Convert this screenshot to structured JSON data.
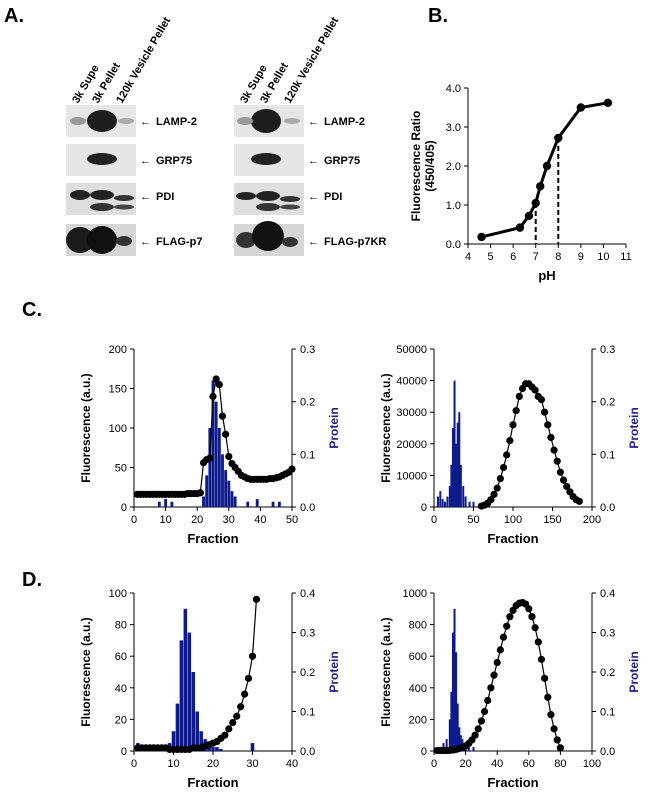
{
  "panels": {
    "A": {
      "letter": "A.",
      "lane_labels": [
        "3k Supe",
        "3k Pellet",
        "120k Vesicle Pellet"
      ],
      "left_blots": [
        "LAMP-2",
        "GRP75",
        "PDI",
        "FLAG-p7"
      ],
      "right_blots": [
        "LAMP-2",
        "GRP75",
        "PDI",
        "FLAG-p7KR"
      ],
      "arrow_glyph": "←"
    },
    "B": {
      "letter": "B."
    },
    "C": {
      "letter": "C."
    },
    "D": {
      "letter": "D."
    }
  },
  "chart_data": [
    {
      "id": "B",
      "type": "line",
      "xlabel": "pH",
      "ylabel": "Fluorescence Ratio",
      "ylabel2": "(450/405)",
      "xlim": [
        4,
        11
      ],
      "ylim": [
        0,
        4
      ],
      "xticks": [
        4,
        5,
        6,
        7,
        8,
        9,
        10,
        11
      ],
      "yticks": [
        0,
        1,
        2,
        3,
        4
      ],
      "ytick_labels": [
        "0.0",
        "1.0",
        "2.0",
        "3.0",
        "4.0"
      ],
      "grid": false,
      "x": [
        4.6,
        6.3,
        6.7,
        7.0,
        7.2,
        7.5,
        8.0,
        9.0,
        10.2
      ],
      "y": [
        0.18,
        0.42,
        0.72,
        1.05,
        1.48,
        2.0,
        2.72,
        3.5,
        3.62
      ],
      "dashed_markers": [
        7,
        8
      ]
    },
    {
      "id": "C-left",
      "type": "line",
      "xlabel": "Fraction",
      "ylabel": "Fluorescence (a.u.)",
      "ylabel_right": "Protein",
      "xlim": [
        0,
        50
      ],
      "ylim": [
        0,
        200
      ],
      "y2lim": [
        0,
        0.3
      ],
      "xticks": [
        0,
        10,
        20,
        30,
        40,
        50
      ],
      "yticks": [
        0,
        50,
        100,
        150,
        200
      ],
      "y2ticks": [
        0,
        0.1,
        0.2,
        0.3
      ],
      "y2tick_labels": [
        "0.0",
        "0.1",
        "0.2",
        "0.3"
      ],
      "fluorescence": {
        "x": [
          1,
          2,
          3,
          4,
          5,
          6,
          7,
          8,
          9,
          10,
          11,
          12,
          13,
          14,
          15,
          16,
          17,
          18,
          19,
          20,
          21,
          22,
          23,
          24,
          25,
          26,
          27,
          28,
          29,
          30,
          31,
          32,
          33,
          34,
          35,
          36,
          37,
          38,
          39,
          40,
          41,
          42,
          43,
          44,
          45,
          46,
          47,
          48,
          49,
          50
        ],
        "y": [
          16,
          16,
          16,
          16,
          16,
          16,
          16,
          16,
          16,
          16,
          16,
          16,
          16,
          16,
          16,
          16,
          17,
          17,
          17,
          17,
          18,
          56,
          60,
          62,
          140,
          162,
          155,
          115,
          92,
          64,
          55,
          50,
          45,
          40,
          38,
          36,
          35,
          35,
          35,
          35,
          35,
          35,
          36,
          36,
          37,
          38,
          40,
          42,
          44,
          48
        ]
      },
      "protein": {
        "x": [
          8,
          10,
          12,
          22,
          23,
          24,
          25,
          26,
          27,
          28,
          29,
          30,
          31,
          32,
          36,
          39,
          44,
          46
        ],
        "y": [
          0.01,
          0.015,
          0.01,
          0.02,
          0.06,
          0.15,
          0.24,
          0.2,
          0.15,
          0.1,
          0.07,
          0.05,
          0.03,
          0.02,
          0.01,
          0.015,
          0.01,
          0.01
        ]
      }
    },
    {
      "id": "C-right",
      "type": "line",
      "xlabel": "Fraction",
      "ylabel": "Fluorescence (a.u.)",
      "ylabel_right": "Protein",
      "xlim": [
        0,
        200
      ],
      "ylim": [
        0,
        50000
      ],
      "y2lim": [
        0,
        0.3
      ],
      "xticks": [
        0,
        50,
        100,
        150,
        200
      ],
      "yticks": [
        0,
        10000,
        20000,
        30000,
        40000,
        50000
      ],
      "y2ticks": [
        0,
        0.1,
        0.2,
        0.3
      ],
      "y2tick_labels": [
        "0.0",
        "0.1",
        "0.2",
        "0.3"
      ],
      "fluorescence": {
        "x": [
          60,
          64,
          68,
          72,
          76,
          80,
          84,
          88,
          92,
          96,
          100,
          104,
          108,
          112,
          116,
          120,
          124,
          128,
          132,
          136,
          140,
          144,
          148,
          152,
          156,
          160,
          164,
          168,
          172,
          176,
          180,
          184
        ],
        "y": [
          300,
          600,
          1200,
          2300,
          4000,
          6000,
          9000,
          12500,
          16500,
          21000,
          26000,
          30500,
          35000,
          37500,
          39000,
          39000,
          38000,
          37000,
          35000,
          34000,
          30000,
          26000,
          22000,
          18000,
          14500,
          11000,
          8500,
          6500,
          4800,
          3300,
          2300,
          1800
        ]
      },
      "protein": {
        "x": [
          5,
          8,
          11,
          14,
          17,
          20,
          22,
          24,
          26,
          28,
          30,
          32,
          34,
          37,
          40,
          45,
          50
        ],
        "y": [
          0.02,
          0.03,
          0.015,
          0.01,
          0.02,
          0.04,
          0.08,
          0.15,
          0.24,
          0.12,
          0.16,
          0.18,
          0.08,
          0.04,
          0.02,
          0.01,
          0.01
        ]
      }
    },
    {
      "id": "D-left",
      "type": "line",
      "xlabel": "Fraction",
      "ylabel": "Fluorescence (a.u.)",
      "ylabel_right": "Protein",
      "xlim": [
        0,
        40
      ],
      "ylim": [
        0,
        100
      ],
      "y2lim": [
        0,
        0.4
      ],
      "xticks": [
        0,
        10,
        20,
        30,
        40
      ],
      "yticks": [
        0,
        20,
        40,
        60,
        80,
        100
      ],
      "y2ticks": [
        0,
        0.1,
        0.2,
        0.3,
        0.4
      ],
      "y2tick_labels": [
        "0.0",
        "0.1",
        "0.2",
        "0.3",
        "0.4"
      ],
      "fluorescence": {
        "x": [
          1,
          2,
          3,
          4,
          5,
          6,
          7,
          8,
          9,
          10,
          11,
          12,
          13,
          14,
          15,
          16,
          17,
          18,
          19,
          20,
          21,
          22,
          23,
          24,
          25,
          26,
          27,
          28,
          29,
          30,
          31
        ],
        "y": [
          2,
          2,
          2,
          2,
          2,
          2,
          2,
          2,
          1,
          1,
          1,
          1,
          1,
          1,
          2,
          2,
          2,
          3,
          4,
          5,
          6,
          8,
          10,
          14,
          18,
          22,
          28,
          36,
          46,
          60,
          96
        ]
      },
      "protein": {
        "x": [
          1,
          2,
          3,
          4,
          5,
          6,
          7,
          8,
          9,
          10,
          11,
          12,
          13,
          14,
          15,
          16,
          17,
          18,
          19,
          20,
          21,
          22,
          30
        ],
        "y": [
          0.02,
          0.01,
          0.01,
          0.015,
          0.01,
          0.01,
          0.015,
          0.01,
          0.02,
          0.05,
          0.12,
          0.28,
          0.36,
          0.3,
          0.2,
          0.1,
          0.05,
          0.03,
          0.02,
          0.01,
          0.01,
          0.005,
          0.02
        ]
      }
    },
    {
      "id": "D-right",
      "type": "line",
      "xlabel": "Fraction",
      "ylabel": "Fluorescence (a.u.)",
      "ylabel_right": "Protein",
      "xlim": [
        0,
        100
      ],
      "ylim": [
        0,
        1000
      ],
      "y2lim": [
        0,
        0.4
      ],
      "xticks": [
        0,
        20,
        40,
        60,
        80,
        100
      ],
      "yticks": [
        0,
        200,
        400,
        600,
        800,
        1000
      ],
      "y2ticks": [
        0,
        0.1,
        0.2,
        0.3,
        0.4
      ],
      "y2tick_labels": [
        "0.0",
        "0.1",
        "0.2",
        "0.3",
        "0.4"
      ],
      "fluorescence": {
        "x": [
          2,
          4,
          6,
          8,
          10,
          12,
          14,
          16,
          18,
          20,
          22,
          24,
          26,
          28,
          30,
          32,
          34,
          36,
          38,
          40,
          42,
          44,
          46,
          48,
          50,
          52,
          54,
          56,
          58,
          60,
          62,
          64,
          66,
          68,
          70,
          72,
          74,
          76,
          78,
          80
        ],
        "y": [
          3,
          3,
          3,
          3,
          4,
          6,
          10,
          15,
          22,
          32,
          48,
          70,
          100,
          140,
          190,
          250,
          320,
          400,
          480,
          560,
          640,
          720,
          790,
          850,
          890,
          920,
          935,
          940,
          930,
          900,
          850,
          780,
          690,
          580,
          460,
          340,
          230,
          140,
          70,
          20
        ]
      },
      "protein": {
        "x": [
          2,
          4,
          6,
          8,
          10,
          11,
          12,
          13,
          14,
          15,
          16,
          17,
          18,
          20,
          22,
          25
        ],
        "y": [
          0.01,
          0.01,
          0.02,
          0.03,
          0.08,
          0.15,
          0.3,
          0.36,
          0.25,
          0.12,
          0.06,
          0.04,
          0.03,
          0.02,
          0.01,
          0.01
        ]
      }
    }
  ]
}
